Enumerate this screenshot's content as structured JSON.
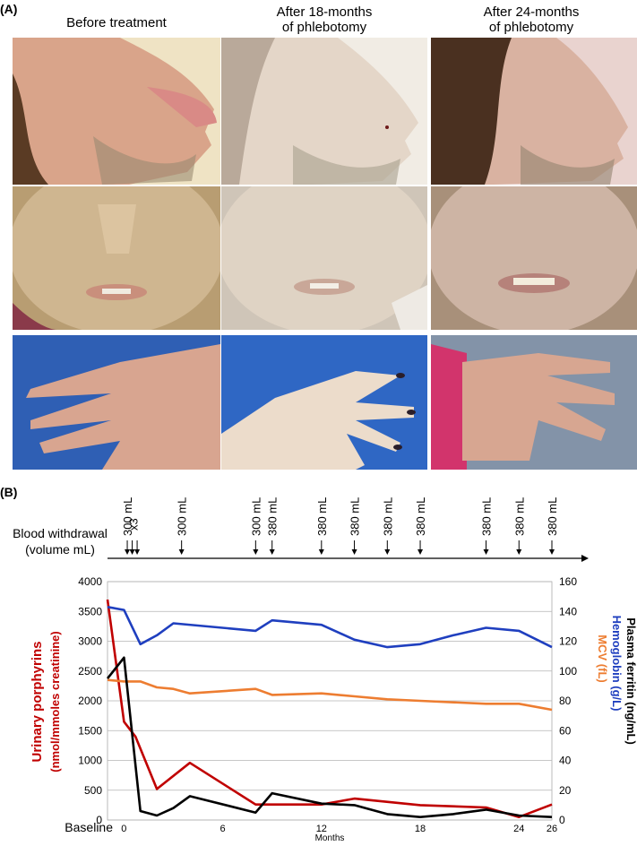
{
  "panelA": {
    "label": "(A)",
    "columns": [
      {
        "title": "Before treatment"
      },
      {
        "title": "After 18-months\nof phlebotomy"
      },
      {
        "title": "After 24-months\nof phlebotomy"
      }
    ]
  },
  "panelB": {
    "label": "(B)",
    "withdrawal_title": "Blood withdrawal",
    "withdrawal_subtitle": "(volume mL)"
  },
  "chart_data": {
    "type": "line",
    "xlabel": "Months",
    "x_ticks": [
      "Baseline",
      "0",
      "6",
      "12",
      "18",
      "24",
      "26"
    ],
    "x_tick_values": [
      -1,
      0,
      6,
      12,
      18,
      24,
      26
    ],
    "xlim": [
      -1,
      26
    ],
    "ylabel_left_line1": "Urinary porphyrins",
    "ylabel_left_line2": "(nmol/mmoles creatinine)",
    "ylim_left": [
      0,
      4000
    ],
    "yticks_left": [
      "4000",
      "3500",
      "3000",
      "2500",
      "2000",
      "1500",
      "1000",
      "500",
      "0"
    ],
    "ylabel_right": [
      "Plasma ferritin (ng/mL)",
      "Hemoglobin (g/L)",
      "MCV (fL)"
    ],
    "ylim_right": [
      0,
      160
    ],
    "yticks_right": [
      "160",
      "140",
      "120",
      "100",
      "80",
      "60",
      "40",
      "20",
      "0"
    ],
    "grid": true,
    "colors": {
      "porphyrins": "#c00000",
      "hemoglobin": "#1f3fbf",
      "mcv": "#ed7d31",
      "ferritin": "#000000"
    },
    "withdrawals": [
      {
        "month": 0.2,
        "label": "300 mL"
      },
      {
        "month": 0.5,
        "label": "x3"
      },
      {
        "month": 0.8,
        "label": ""
      },
      {
        "month": 3.5,
        "label": "300 mL"
      },
      {
        "month": 8,
        "label": "300 mL"
      },
      {
        "month": 9,
        "label": "380 mL"
      },
      {
        "month": 12,
        "label": "380 mL"
      },
      {
        "month": 14,
        "label": "380 mL"
      },
      {
        "month": 16,
        "label": "380 mL"
      },
      {
        "month": 18,
        "label": "380 mL"
      },
      {
        "month": 22,
        "label": "380 mL"
      },
      {
        "month": 24,
        "label": "380 mL"
      },
      {
        "month": 26,
        "label": "380 mL"
      }
    ],
    "series": [
      {
        "name": "Urinary porphyrins",
        "axis": "left",
        "color": "#c00000",
        "x": [
          -1,
          0,
          0.7,
          2,
          4,
          8,
          9,
          12,
          14,
          18,
          22,
          24,
          26
        ],
        "y": [
          3700,
          1650,
          1400,
          520,
          960,
          260,
          260,
          260,
          360,
          250,
          210,
          50,
          260
        ]
      },
      {
        "name": "Hemoglobin",
        "axis": "right",
        "color": "#1f3fbf",
        "x": [
          -1,
          0,
          1,
          2,
          3,
          8,
          9,
          12,
          14,
          16,
          18,
          20,
          22,
          24,
          26
        ],
        "y": [
          143,
          141,
          118,
          124,
          132,
          127,
          134,
          131,
          121,
          116,
          118,
          124,
          129,
          127,
          116
        ]
      },
      {
        "name": "MCV",
        "axis": "right",
        "color": "#ed7d31",
        "x": [
          -1,
          0,
          1,
          2,
          3,
          4,
          8,
          9,
          12,
          14,
          16,
          18,
          22,
          24,
          26
        ],
        "y": [
          94,
          93,
          93,
          89,
          88,
          85,
          88,
          84,
          85,
          83,
          81,
          80,
          78,
          78,
          74
        ]
      },
      {
        "name": "Plasma ferritin",
        "axis": "right",
        "color": "#000000",
        "x": [
          -1,
          0,
          1,
          2,
          3,
          4,
          8,
          9,
          12,
          14,
          16,
          18,
          20,
          22,
          24,
          26
        ],
        "y": [
          95,
          109,
          6,
          3,
          8,
          16,
          5,
          18,
          11,
          10,
          4,
          2,
          4,
          7,
          3,
          2
        ]
      }
    ]
  }
}
